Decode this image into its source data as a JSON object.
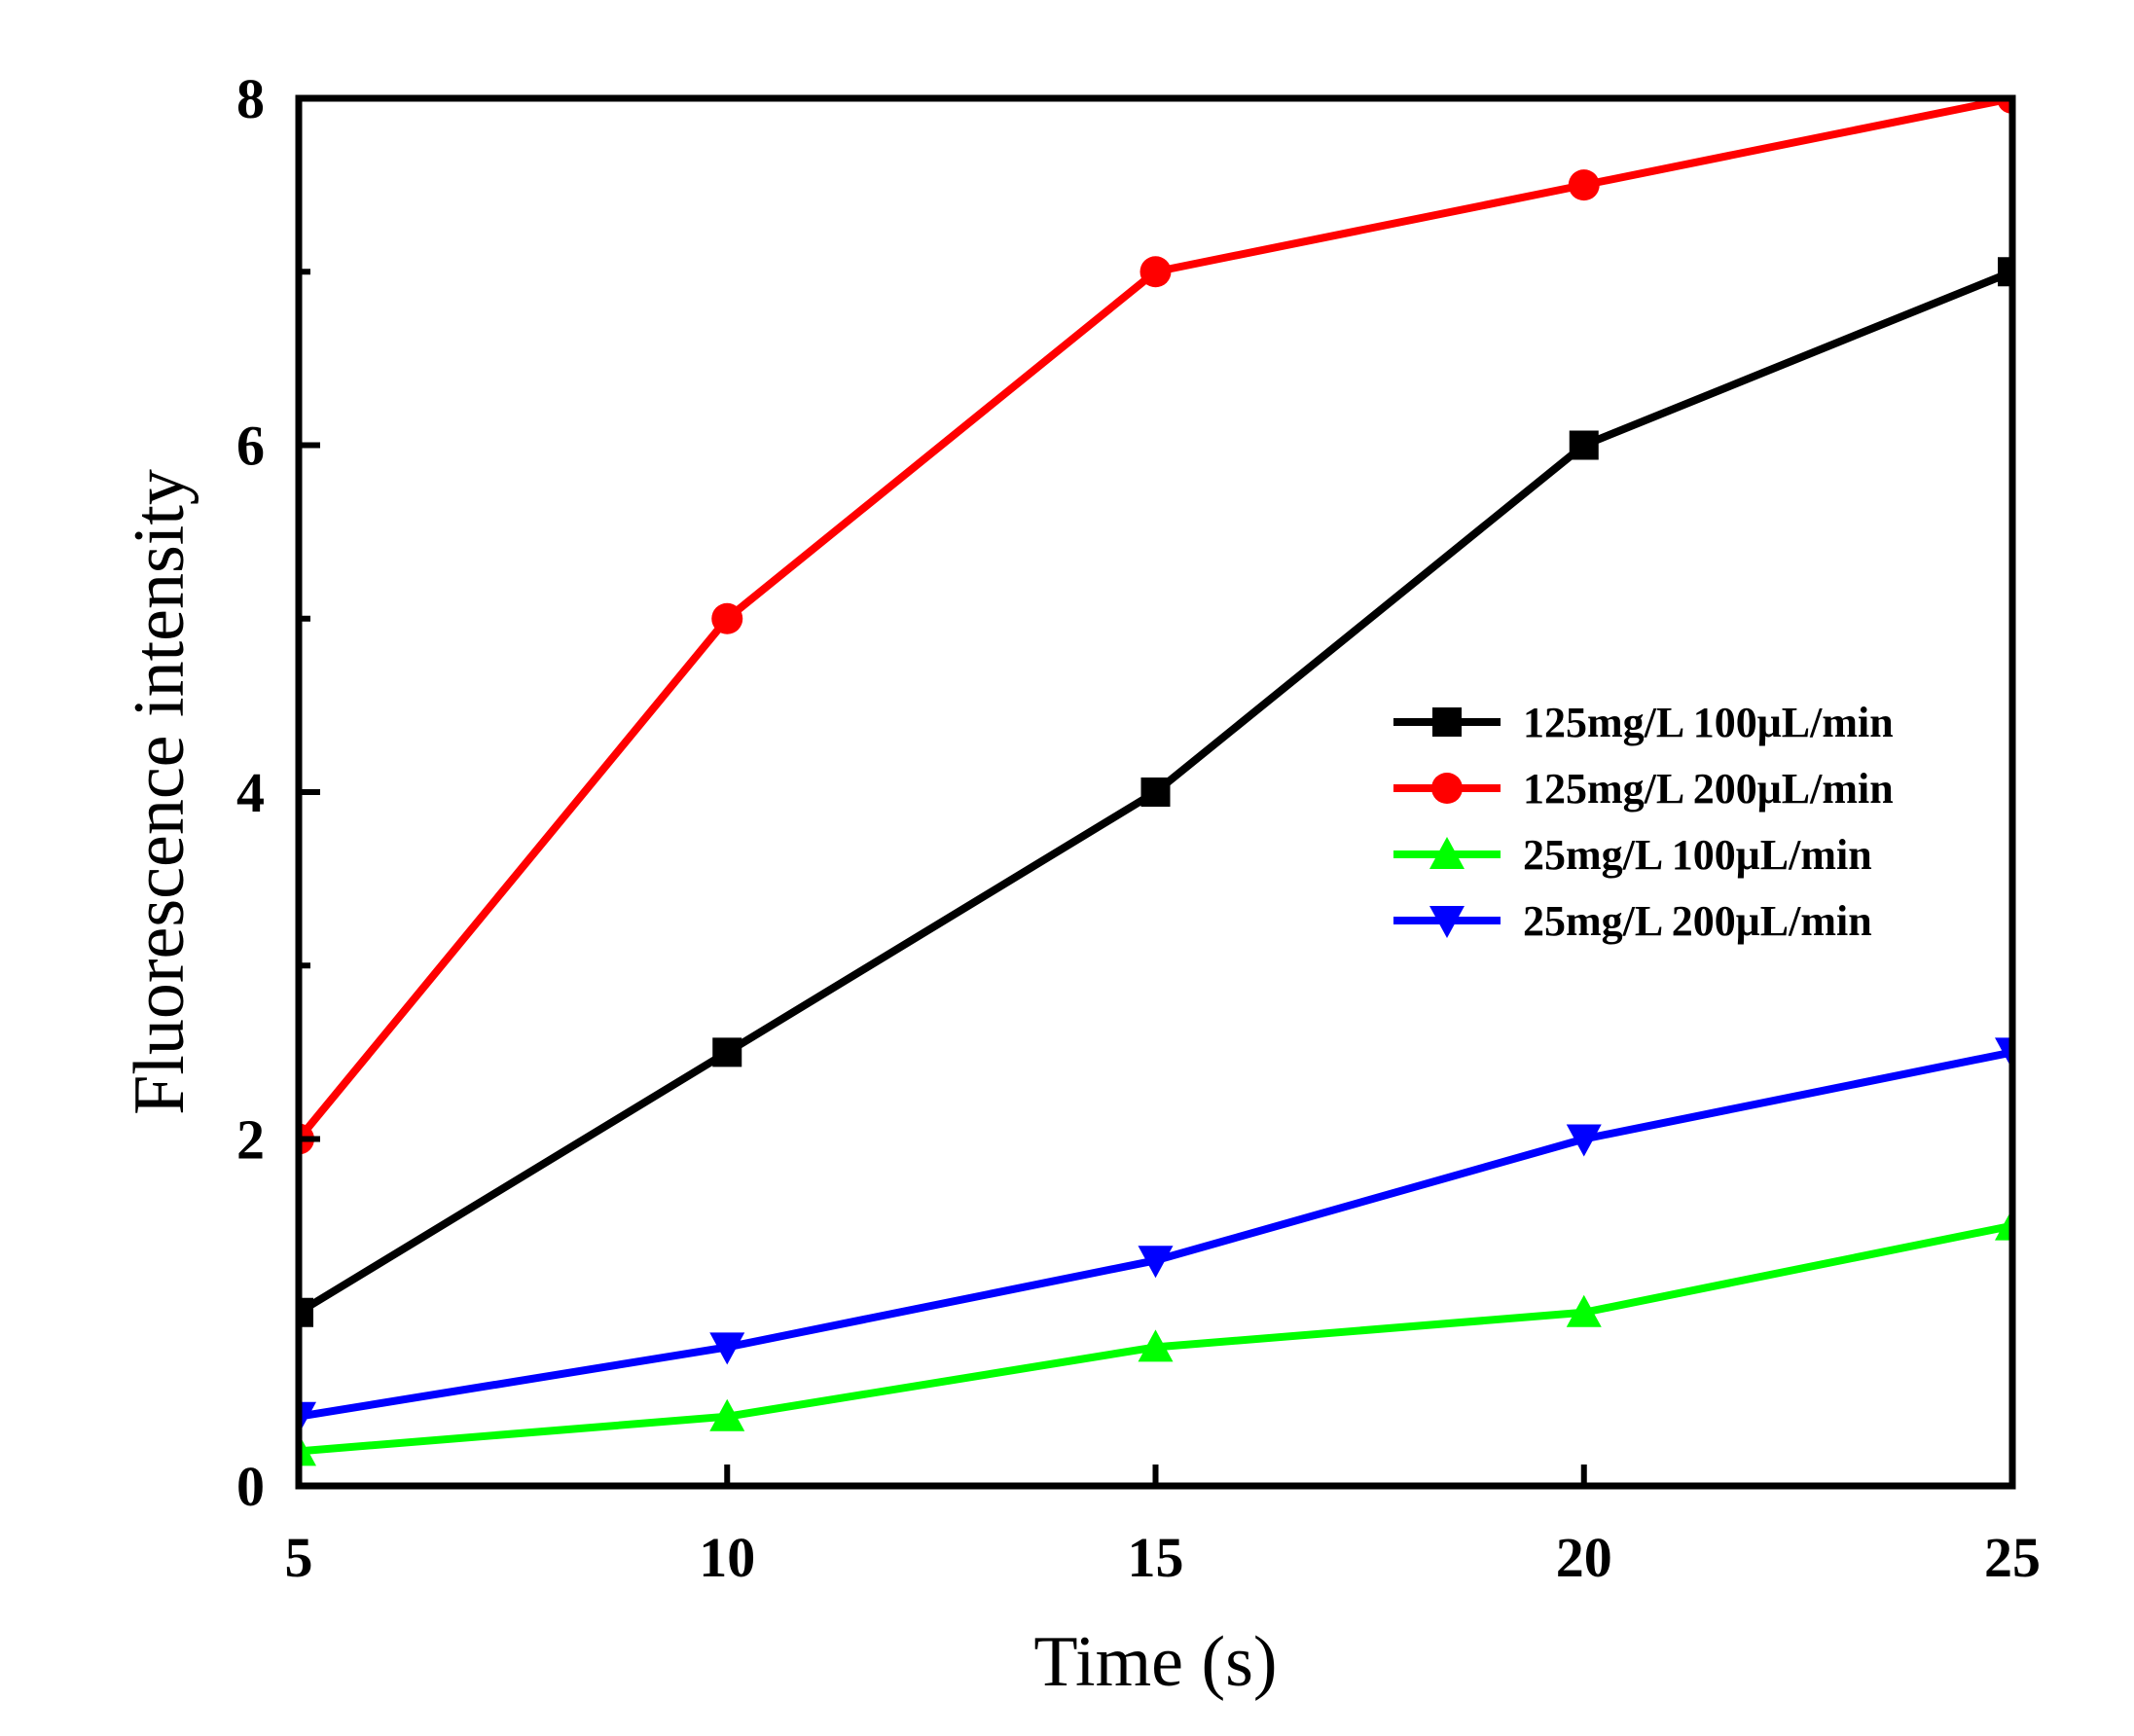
{
  "chart_data": {
    "type": "line",
    "xlabel": "Time (s)",
    "ylabel": "Fluorescence intensity",
    "x": [
      5,
      10,
      15,
      20,
      25
    ],
    "xlim": [
      5,
      25
    ],
    "ylim": [
      0,
      8
    ],
    "xticks": [
      "5",
      "10",
      "15",
      "20",
      "25"
    ],
    "yticks": [
      "0",
      "2",
      "4",
      "6",
      "8"
    ],
    "grid": false,
    "legend_position": "center-right",
    "series": [
      {
        "name": "125mg/L 100μL/min",
        "color": "#000000",
        "marker": "square",
        "values": [
          1.0,
          2.5,
          4.0,
          6.0,
          7.0
        ]
      },
      {
        "name": "125mg/L 200μL/min",
        "color": "#ff0000",
        "marker": "circle",
        "values": [
          2.0,
          5.0,
          7.0,
          7.5,
          8.0
        ]
      },
      {
        "name": "25mg/L 100μL/min",
        "color": "#00ff00",
        "marker": "triangle-up",
        "values": [
          0.2,
          0.4,
          0.8,
          1.0,
          1.5
        ]
      },
      {
        "name": "25mg/L 200μL/min",
        "color": "#0000ff",
        "marker": "triangle-down",
        "values": [
          0.4,
          0.8,
          1.3,
          2.0,
          2.5
        ]
      }
    ]
  }
}
